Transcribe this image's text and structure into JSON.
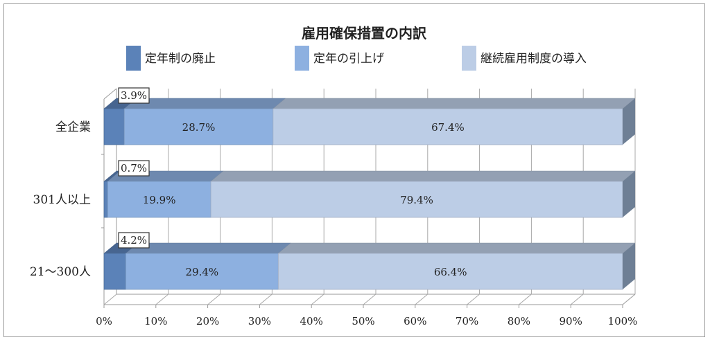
{
  "chart_data": {
    "type": "bar",
    "orientation": "horizontal",
    "stacked": true,
    "style": "3d",
    "title": "雇用確保措置の内訳",
    "categories": [
      "全企業",
      "301人以上",
      "21～300人"
    ],
    "series": [
      {
        "name": "定年制の廃止",
        "values": [
          3.9,
          0.7,
          4.2
        ],
        "labels": [
          "3.9%",
          "0.7%",
          "4.2%"
        ],
        "color": "#5b82b8"
      },
      {
        "name": "定年の引上げ",
        "values": [
          28.7,
          19.9,
          29.4
        ],
        "labels": [
          "28.7%",
          "19.9%",
          "29.4%"
        ],
        "color": "#8db0e0"
      },
      {
        "name": "継続雇用制度の導入",
        "values": [
          67.4,
          79.4,
          66.4
        ],
        "labels": [
          "67.4%",
          "79.4%",
          "66.4%"
        ],
        "color": "#bccde6"
      }
    ],
    "xlim": [
      0,
      100
    ],
    "x_ticks": [
      "0%",
      "10%",
      "20%",
      "30%",
      "40%",
      "50%",
      "60%",
      "70%",
      "80%",
      "90%",
      "100%"
    ],
    "grid": true,
    "legend_position": "top"
  }
}
